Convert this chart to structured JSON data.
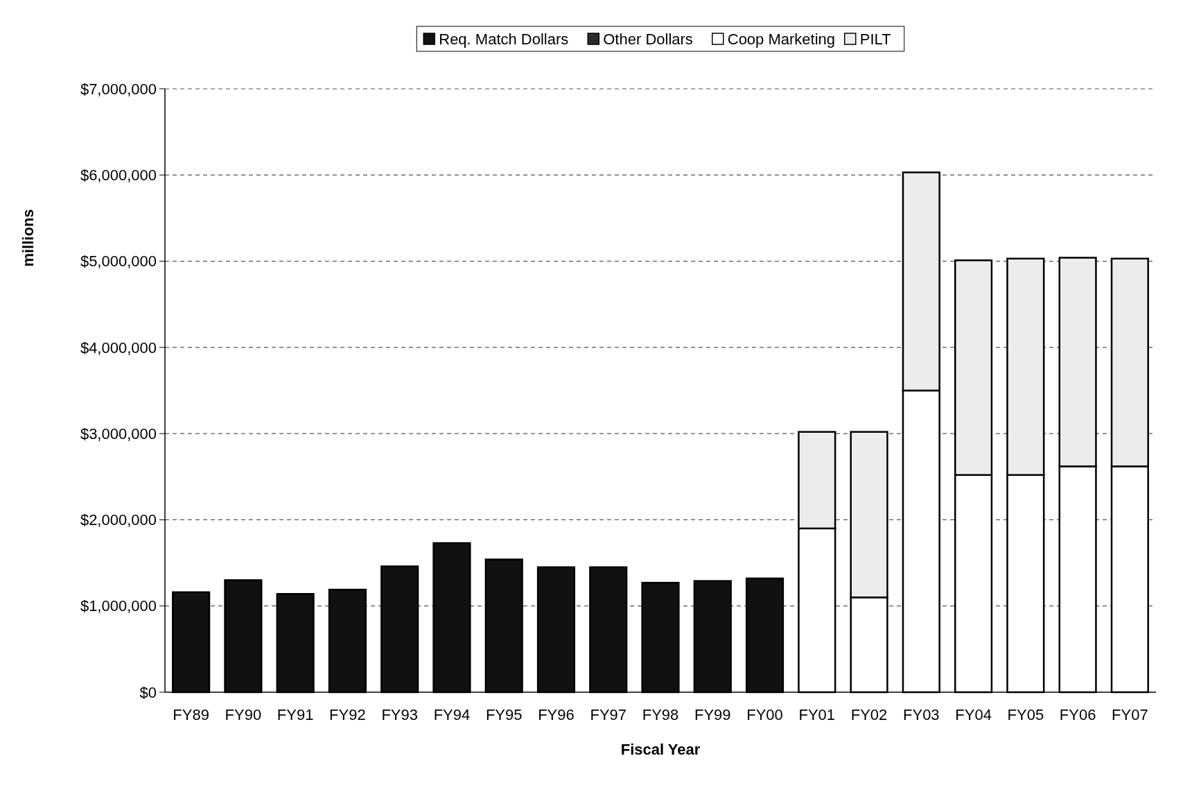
{
  "chart_data": {
    "type": "bar",
    "stacked": true,
    "xlabel": "Fiscal Year",
    "ylabel": "millions",
    "categories": [
      "FY89",
      "FY90",
      "FY91",
      "FY92",
      "FY93",
      "FY94",
      "FY95",
      "FY96",
      "FY97",
      "FY98",
      "FY99",
      "FY00",
      "FY01",
      "FY02",
      "FY03",
      "FY04",
      "FY05",
      "FY06",
      "FY07"
    ],
    "series": [
      {
        "name": "Req. Match Dollars",
        "color": "#111111",
        "values": [
          1160000,
          1300000,
          1140000,
          1190000,
          1460000,
          1730000,
          1540000,
          1450000,
          1450000,
          1270000,
          1290000,
          1320000,
          null,
          null,
          null,
          null,
          null,
          null,
          null
        ]
      },
      {
        "name": "Other Dollars",
        "color": "#2a2a2a",
        "values": [
          null,
          null,
          null,
          null,
          null,
          null,
          null,
          null,
          null,
          null,
          null,
          null,
          null,
          null,
          null,
          null,
          null,
          null,
          null
        ]
      },
      {
        "name": "Coop Marketing",
        "color": "#ffffff",
        "values": [
          null,
          null,
          null,
          null,
          null,
          null,
          null,
          null,
          null,
          null,
          null,
          null,
          1900000,
          1100000,
          3500000,
          2520000,
          2520000,
          2620000,
          2620000
        ]
      },
      {
        "name": "PILT",
        "color": "#ececec",
        "values": [
          null,
          null,
          null,
          null,
          null,
          null,
          null,
          null,
          null,
          null,
          null,
          null,
          1120000,
          1920000,
          2530000,
          2490000,
          2510000,
          2420000,
          2410000
        ]
      }
    ],
    "ylim": [
      0,
      7000000
    ],
    "yticks": [
      {
        "value": 0,
        "label": "$0"
      },
      {
        "value": 1000000,
        "label": "$1,000,000"
      },
      {
        "value": 2000000,
        "label": "$2,000,000"
      },
      {
        "value": 3000000,
        "label": "$3,000,000"
      },
      {
        "value": 4000000,
        "label": "$4,000,000"
      },
      {
        "value": 5000000,
        "label": "$5,000,000"
      },
      {
        "value": 6000000,
        "label": "$6,000,000"
      },
      {
        "value": 7000000,
        "label": "$7,000,000"
      }
    ],
    "grid": "y",
    "legend": "top"
  }
}
